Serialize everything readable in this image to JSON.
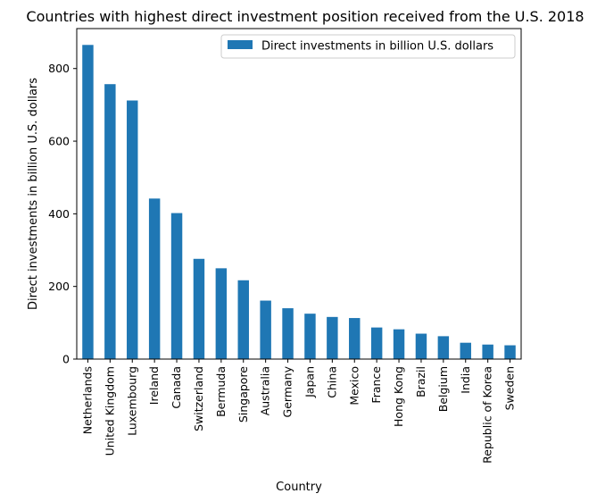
{
  "chart_data": {
    "type": "bar",
    "title": "Countries with highest direct investment position received from the U.S. 2018",
    "xlabel": "Country",
    "ylabel": "Direct investments in billion U.S. dollars",
    "ylim": [
      0,
      910
    ],
    "yticks": [
      0,
      200,
      400,
      600,
      800
    ],
    "grid": false,
    "legend_position": "top-right",
    "bar_color": "#1f77b4",
    "categories": [
      "Netherlands",
      "United Kingdom",
      "Luxembourg",
      "Ireland",
      "Canada",
      "Switzerland",
      "Bermuda",
      "Singapore",
      "Australia",
      "Germany",
      "Japan",
      "China",
      "Mexico",
      "France",
      "Hong Kong",
      "Brazil",
      "Belgium",
      "India",
      "Republic of Korea",
      "Sweden"
    ],
    "series": [
      {
        "name": "Direct investments in billion U.S. dollars",
        "values": [
          865,
          757,
          712,
          442,
          402,
          276,
          250,
          217,
          161,
          140,
          125,
          116,
          113,
          87,
          82,
          70,
          63,
          45,
          40,
          38
        ]
      }
    ]
  }
}
